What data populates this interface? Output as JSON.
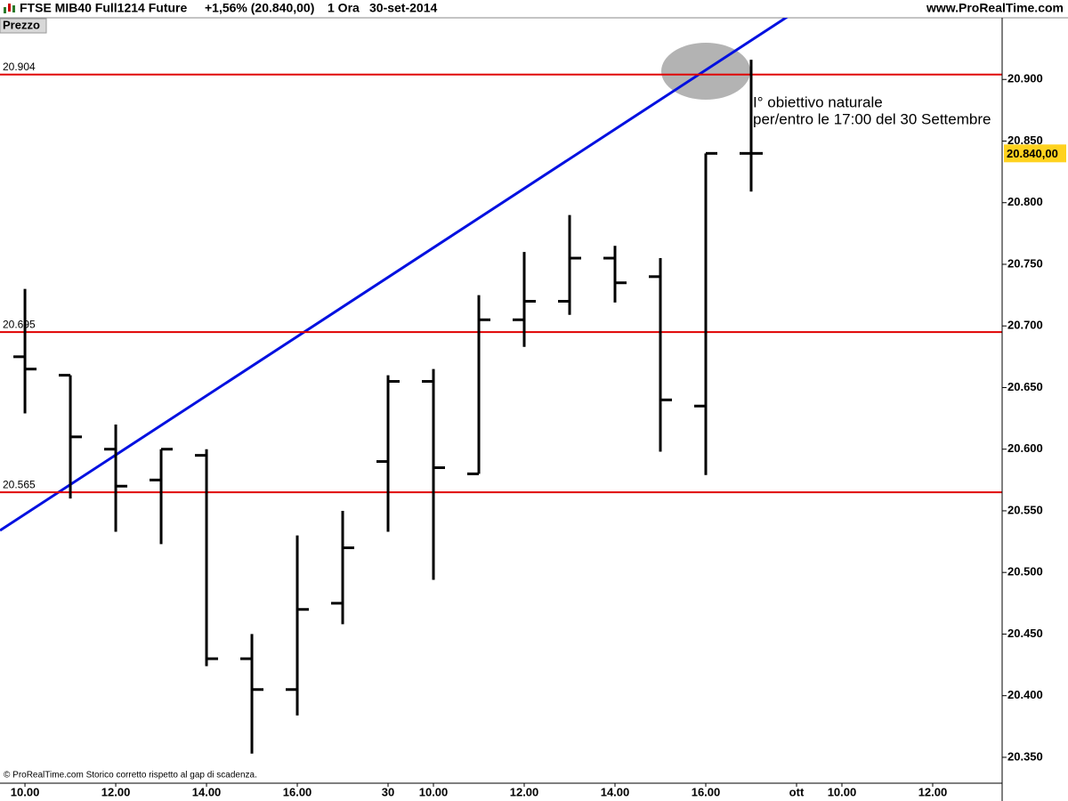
{
  "chart_data": {
    "type": "ohlc",
    "title": "FTSE MIB40 Full1214 Future",
    "change": "+1,56% (20.840,00)",
    "timeframe": "1 Ora",
    "date": "30-set-2014",
    "source": "www.ProRealTime.com",
    "panel_label": "Prezzo",
    "footer": "© ProRealTime.com Storico corretto rispetto al gap di scadenza.",
    "annotation": [
      "I° obiettivo naturale",
      "per/entro le 17:00 del 30 Settembre"
    ],
    "x": [
      0,
      1,
      2,
      3,
      4,
      5,
      6,
      7,
      8,
      9,
      10,
      11,
      12,
      13,
      14,
      15,
      16
    ],
    "open": [
      20675,
      20660,
      20600,
      20575,
      20595,
      20430,
      20405,
      20475,
      20590,
      20655,
      20580,
      20705,
      20720,
      20755,
      20740,
      20635,
      20840
    ],
    "high": [
      20730,
      20660,
      20620,
      20600,
      20600,
      20450,
      20530,
      20550,
      20660,
      20665,
      20725,
      20760,
      20790,
      20765,
      20755,
      20840,
      20916
    ],
    "low": [
      20629,
      20560,
      20533,
      20523,
      20424,
      20353,
      20384,
      20458,
      20533,
      20494,
      20580,
      20683,
      20709,
      20719,
      20598,
      20579,
      20809
    ],
    "close": [
      20665,
      20610,
      20570,
      20600,
      20430,
      20405,
      20470,
      20520,
      20655,
      20585,
      20705,
      20720,
      20755,
      20735,
      20640,
      20840,
      20840
    ],
    "color": "#000000",
    "xlim": [
      -0.55,
      21.53
    ],
    "xticks": [
      {
        "value": 0,
        "label": "10.00"
      },
      {
        "value": 2,
        "label": "12.00"
      },
      {
        "value": 4,
        "label": "14.00"
      },
      {
        "value": 6,
        "label": "16.00"
      },
      {
        "value": 8,
        "label": "30"
      },
      {
        "value": 9,
        "label": "10.00"
      },
      {
        "value": 11,
        "label": "12.00"
      },
      {
        "value": 13,
        "label": "14.00"
      },
      {
        "value": 15,
        "label": "16.00"
      },
      {
        "value": 17,
        "label": "ott"
      },
      {
        "value": 18,
        "label": "10.00"
      },
      {
        "value": 20,
        "label": "12.00"
      }
    ],
    "ylim": [
      20329,
      20950
    ],
    "yticks": [
      {
        "value": 20350,
        "label": "20.350"
      },
      {
        "value": 20400,
        "label": "20.400"
      },
      {
        "value": 20450,
        "label": "20.450"
      },
      {
        "value": 20500,
        "label": "20.500"
      },
      {
        "value": 20550,
        "label": "20.550"
      },
      {
        "value": 20600,
        "label": "20.600"
      },
      {
        "value": 20650,
        "label": "20.650"
      },
      {
        "value": 20700,
        "label": "20.700"
      },
      {
        "value": 20750,
        "label": "20.750"
      },
      {
        "value": 20800,
        "label": "20.800"
      },
      {
        "value": 20850,
        "label": "20.850"
      },
      {
        "value": 20900,
        "label": "20.900"
      }
    ],
    "levels": [
      {
        "value": 20904,
        "label": "20.904"
      },
      {
        "value": 20695,
        "label": "20.695"
      },
      {
        "value": 20565,
        "label": "20.565"
      }
    ],
    "level_color": "#e00000",
    "last_price": {
      "value": 20840,
      "label": "20.840,00"
    },
    "last_price_color": "#ffd21f"
  }
}
